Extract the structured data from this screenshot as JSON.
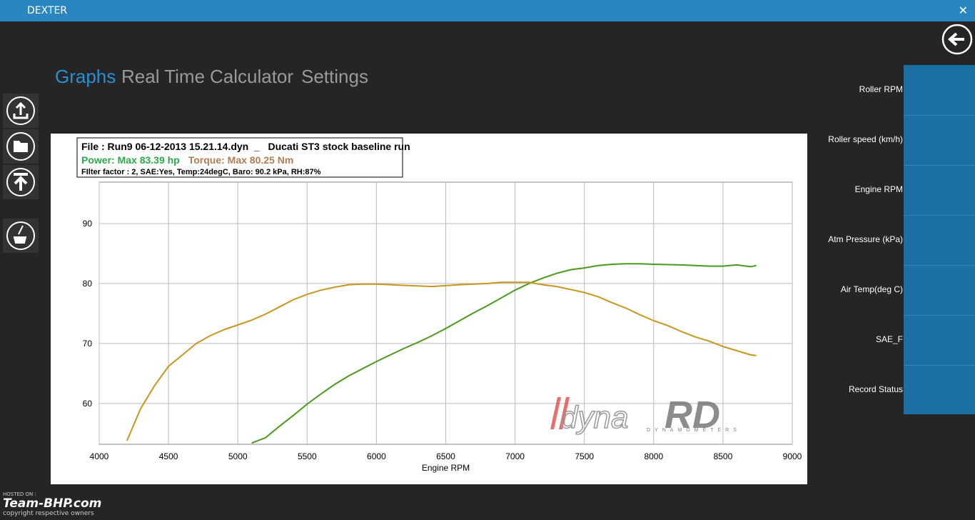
{
  "app": {
    "title": "DEXTER"
  },
  "tabs": [
    "Graphs",
    "Real Time",
    "Calculator",
    "Settings"
  ],
  "side_panel": [
    "Roller RPM",
    "Roller speed (km/h)",
    "Engine RPM",
    "Atm Pressure (kPa)",
    "Air Temp(deg C)",
    "SAE_F",
    "Record Status"
  ],
  "watermark": {
    "brand_a": "dyna",
    "brand_b": "RD",
    "tagline": "DYNAMOMETERS"
  },
  "hosted": {
    "line1": "HOSTED ON :",
    "line2": "Team-BHP.com",
    "line3": "copyright respective owners"
  },
  "chart_data": {
    "type": "line",
    "title": "File : Run9 06-12-2013 15.21.14.dyn  _   Ducati ST3 stock baseline run",
    "subtitle": "FIlter factor : 2, SAE:Yes, Temp:24degC, Baro: 90.2 kPa, RH:87%",
    "x_label": "Engine RPM",
    "xlim": [
      4000,
      9000
    ],
    "xticks": [
      4000,
      4500,
      5000,
      5500,
      6000,
      6500,
      7000,
      7500,
      8000,
      8500,
      9000
    ],
    "ylim": [
      53.2,
      96.9
    ],
    "yticks": [
      60,
      70,
      80,
      90
    ],
    "grid": true,
    "series": [
      {
        "name": "Power: Max 83.39 hp",
        "color": "#4a9a1e",
        "label_color": "#2ea84a",
        "x": [
          5100,
          5200,
          5300,
          5400,
          5500,
          5600,
          5700,
          5800,
          5900,
          6000,
          6100,
          6200,
          6300,
          6400,
          6500,
          6600,
          6700,
          6800,
          6900,
          7000,
          7100,
          7200,
          7300,
          7400,
          7500,
          7600,
          7700,
          7800,
          7900,
          8000,
          8200,
          8400,
          8500,
          8600,
          8700,
          8740
        ],
        "values": [
          53.4,
          54.3,
          56.2,
          58,
          59.9,
          61.6,
          63.2,
          64.6,
          65.8,
          67,
          68.1,
          69.2,
          70.2,
          71.3,
          72.5,
          73.8,
          75.1,
          76.3,
          77.6,
          78.9,
          80,
          80.9,
          81.7,
          82.3,
          82.6,
          83,
          83.2,
          83.3,
          83.3,
          83.2,
          83.1,
          82.9,
          82.9,
          83.1,
          82.8,
          83
        ]
      },
      {
        "name": "Torque: Max 80.25 Nm",
        "color": "#c8961e",
        "label_color": "#b07d55",
        "x": [
          4200,
          4300,
          4400,
          4500,
          4600,
          4700,
          4800,
          4900,
          5000,
          5100,
          5200,
          5300,
          5400,
          5500,
          5600,
          5700,
          5800,
          5900,
          6000,
          6200,
          6400,
          6600,
          6800,
          6900,
          7000,
          7100,
          7200,
          7300,
          7400,
          7500,
          7600,
          7700,
          7800,
          7900,
          8000,
          8100,
          8200,
          8300,
          8400,
          8500,
          8600,
          8700,
          8740
        ],
        "values": [
          53.8,
          59.2,
          63,
          66.2,
          68.1,
          70,
          71.3,
          72.3,
          73.1,
          73.9,
          74.9,
          76.1,
          77.3,
          78.2,
          78.9,
          79.4,
          79.8,
          79.9,
          79.9,
          79.7,
          79.5,
          79.8,
          80,
          80.2,
          80.2,
          80.2,
          79.8,
          79.5,
          79,
          78.5,
          77.8,
          76.8,
          75.9,
          74.8,
          73.8,
          73,
          72,
          71.1,
          70.4,
          69.5,
          68.8,
          68.1,
          68
        ]
      }
    ]
  }
}
